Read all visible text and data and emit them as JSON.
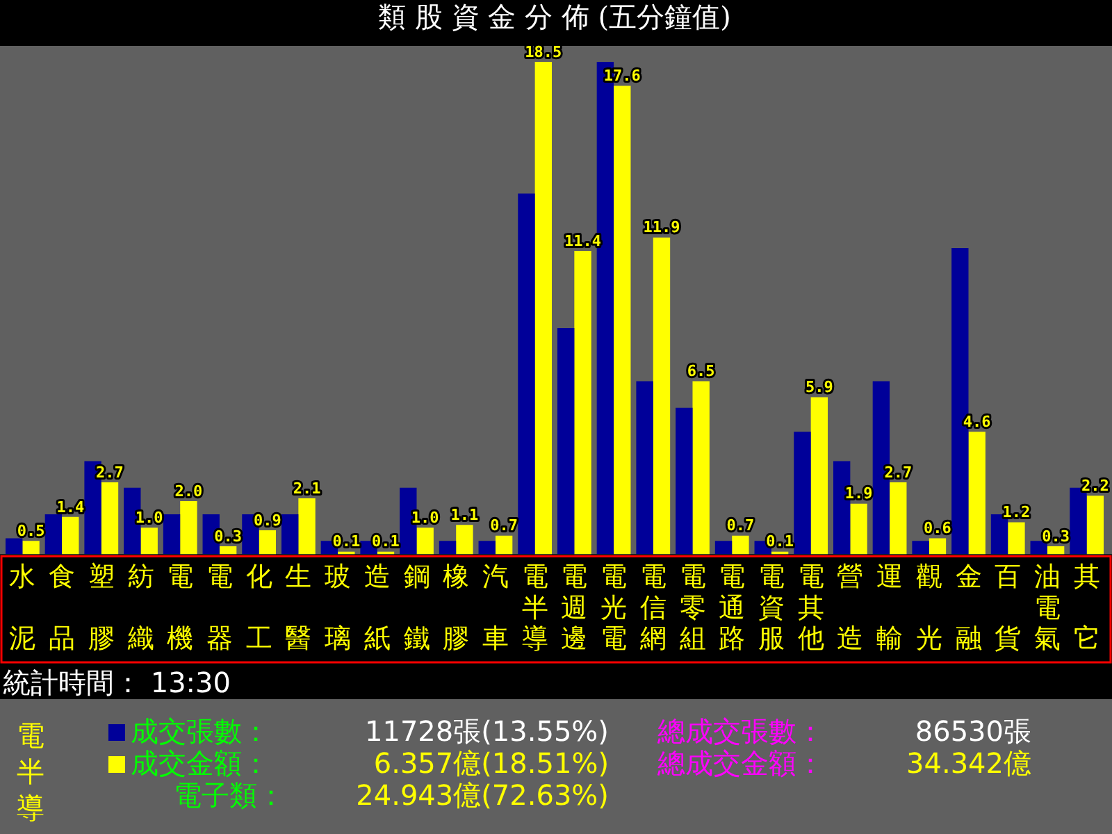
{
  "chart_data": {
    "type": "bar",
    "title": "類 股 資 金 分 佈 (五分鐘值)",
    "categories": [
      "水泥",
      "食品",
      "塑膠",
      "紡織",
      "電機",
      "電器",
      "化工",
      "生醫",
      "玻璃",
      "造紙",
      "鋼鐵",
      "橡膠",
      "汽車",
      "電半導",
      "電週邊",
      "電光電",
      "電信網",
      "電零組",
      "電通路",
      "電資服",
      "電其他",
      "營造",
      "運輸",
      "觀光",
      "金融",
      "百貨",
      "油電氣",
      "其它"
    ],
    "series": [
      {
        "name": "成交張數：",
        "color": "#000099",
        "values": [
          0.6,
          1.5,
          3.5,
          2.5,
          1.5,
          1.5,
          1.5,
          1.5,
          0.5,
          0.5,
          2.5,
          0.5,
          0.5,
          13.55,
          8.5,
          18.5,
          6.5,
          5.5,
          0.5,
          0.5,
          4.6,
          3.5,
          6.5,
          0.5,
          11.5,
          1.5,
          0.5,
          2.5
        ]
      },
      {
        "name": "成交金額：",
        "color": "#ffff00",
        "values": [
          0.5,
          1.4,
          2.7,
          1.0,
          2.0,
          0.3,
          0.9,
          2.1,
          0.1,
          0.1,
          1.0,
          1.1,
          0.7,
          18.5,
          11.4,
          17.6,
          11.9,
          6.5,
          0.7,
          0.1,
          5.9,
          1.9,
          2.7,
          0.6,
          4.6,
          1.2,
          0.3,
          2.2
        ],
        "value_labels": [
          "0.5",
          "1.4",
          "2.7",
          "1.0",
          "2.0",
          "0.3",
          "0.9",
          "2.1",
          "0.1",
          "0.1",
          "1.0",
          "1.1",
          "0.7",
          "18.5",
          "11.4",
          "17.6",
          "11.9",
          "6.5",
          "0.7",
          "0.1",
          "5.9",
          "1.9",
          "2.7",
          "0.6",
          "4.6",
          "1.2",
          "0.3",
          "2.2"
        ]
      }
    ],
    "ylim": [
      0,
      19.1
    ],
    "tick_labels": "x",
    "grid": false,
    "legend": "bottom left",
    "annotations": [
      "統計時間： 13:30",
      "電半導",
      "11728張(13.55%)",
      "6.357億(18.51%)",
      "電子類：",
      "24.943億(72.63%)",
      "總成交張數：",
      "86530張",
      "總成交金額：",
      "34.342億"
    ]
  }
}
